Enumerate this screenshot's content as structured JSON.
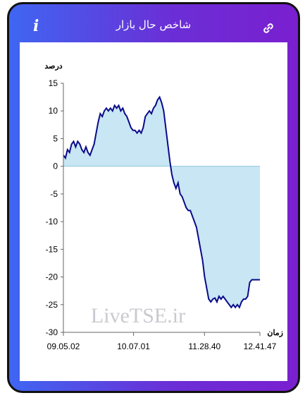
{
  "header": {
    "title": "شاخص حال بازار",
    "info_icon": "info-icon",
    "link_icon": "link-icon"
  },
  "chart_data": {
    "type": "area",
    "ylabel": "درصد",
    "xlabel": "زمان",
    "ylim": [
      -30,
      15
    ],
    "yticks": [
      15,
      10,
      5,
      0,
      -5,
      -10,
      -15,
      -20,
      -25,
      -30
    ],
    "xticks": [
      "09.05.02",
      "10.07.01",
      "11.28.40",
      "12.41.47"
    ],
    "watermark": "LiveTSE.ir",
    "colors": {
      "line": "#0a0a8a",
      "fill": "#c8e6f3",
      "zero_line": "#8fc7df"
    },
    "series": [
      {
        "values": [
          2,
          1.5,
          3,
          2.5,
          4,
          4.5,
          3.5,
          4.5,
          4,
          3,
          2.5,
          3.5,
          2.5,
          2,
          3,
          4,
          6,
          8,
          9.5,
          9,
          10,
          10.5,
          10,
          10.5,
          10,
          11,
          10.5,
          11,
          10,
          10.5,
          9.5,
          9,
          8,
          7,
          6.5,
          6.5,
          6,
          6.5,
          6,
          7,
          9,
          9.5,
          10,
          9.5,
          10.5,
          11,
          12,
          12.5,
          11.5,
          10,
          7,
          4,
          1,
          -1.5,
          -3,
          -4,
          -3,
          -5,
          -5.5,
          -6.5,
          -7.5,
          -8,
          -8,
          -9,
          -10,
          -11,
          -13,
          -15,
          -17,
          -20,
          -22,
          -24,
          -24.5,
          -24,
          -23.8,
          -24.5,
          -23.5,
          -24,
          -23.5,
          -24,
          -24.5,
          -25,
          -25.5,
          -25,
          -25.5,
          -25,
          -25.5,
          -24.5,
          -24,
          -24,
          -23.5,
          -21,
          -20.5,
          -20.5,
          -20.5,
          -20.5,
          -20.5
        ]
      }
    ]
  }
}
